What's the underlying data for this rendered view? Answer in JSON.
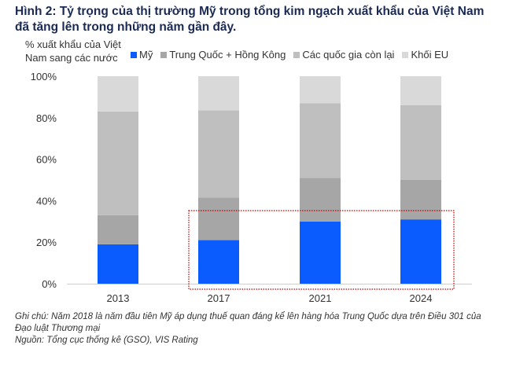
{
  "title": "Hình 2: Tỷ trọng của thị trường Mỹ trong tổng kim ngạch xuất khẩu của Việt Nam đã tăng lên trong những năm gần đây.",
  "chart_data": {
    "type": "bar",
    "stacked": true,
    "ylabel": "% xuất khẩu của Việt Nam sang các nước",
    "categories": [
      "2013",
      "2017",
      "2021",
      "2024"
    ],
    "ylim": [
      0,
      100
    ],
    "yticks": [
      "0%",
      "20%",
      "40%",
      "60%",
      "80%",
      "100%"
    ],
    "legend_position": "top",
    "series": [
      {
        "name": "Mỹ",
        "color": "#0a5cff",
        "values": [
          19,
          21,
          30,
          31
        ]
      },
      {
        "name": "Trung Quốc + Hồng Kông",
        "color": "#a6a6a6",
        "values": [
          14,
          20.5,
          21,
          19
        ]
      },
      {
        "name": "Các quốc gia còn lại",
        "color": "#bfbfbf",
        "values": [
          50,
          42,
          36,
          36
        ]
      },
      {
        "name": "Khối EU",
        "color": "#d9d9d9",
        "values": [
          17,
          16.5,
          13,
          14
        ]
      }
    ],
    "highlight": {
      "categories": [
        "2017",
        "2021",
        "2024"
      ],
      "color": "#c00000"
    }
  },
  "footer": {
    "note": "Ghi chú: Năm 2018 là năm đầu tiên Mỹ áp dụng thuế quan đáng kể lên hàng hóa Trung Quốc dựa trên Điều 301 của Đạo luật Thương mại",
    "source": "Nguồn: Tổng cục thống kê (GSO), VIS Rating"
  }
}
